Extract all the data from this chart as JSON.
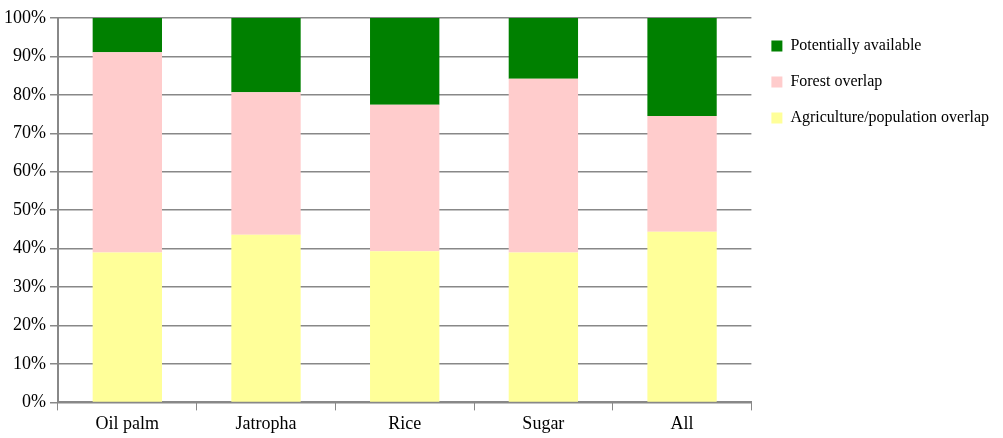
{
  "chart_data": {
    "type": "bar",
    "stacked": true,
    "categories": [
      "Oil palm",
      "Jatropha",
      "Rice",
      "Sugar",
      "All"
    ],
    "series": [
      {
        "name": "Agriculture/population overlap",
        "color": "#ffff99",
        "values": [
          39.0,
          43.6,
          39.3,
          39.0,
          44.4
        ]
      },
      {
        "name": "Forest overlap",
        "color": "#ffcccc",
        "values": [
          52.1,
          37.1,
          38.1,
          45.2,
          30.1
        ]
      },
      {
        "name": "Potentially available",
        "color": "#008000",
        "values": [
          8.9,
          19.3,
          22.6,
          15.8,
          25.5
        ]
      }
    ],
    "ylim": [
      0,
      100
    ],
    "yticks": [
      {
        "value": 0,
        "label": "0%"
      },
      {
        "value": 10,
        "label": "10%"
      },
      {
        "value": 20,
        "label": "20%"
      },
      {
        "value": 30,
        "label": "30%"
      },
      {
        "value": 40,
        "label": "40%"
      },
      {
        "value": 50,
        "label": "50%"
      },
      {
        "value": 60,
        "label": "60%"
      },
      {
        "value": 70,
        "label": "70%"
      },
      {
        "value": 80,
        "label": "80%"
      },
      {
        "value": 90,
        "label": "90%"
      },
      {
        "value": 100,
        "label": "100%"
      }
    ],
    "grid": "y",
    "legend": "right"
  }
}
